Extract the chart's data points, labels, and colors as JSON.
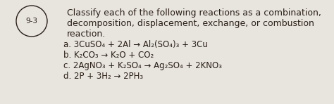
{
  "bg_color": "#e8e4de",
  "text_color": "#2a2018",
  "header1": "Classify each of the following reactions as a combination,",
  "header2": "decomposition, displacement, exchange, or combustion",
  "header3": "reaction.",
  "label": "9-3",
  "lines": [
    "a. 3CuSO₄ + 2Al → Al₂(SO₄)₃ + 3Cu",
    "b. K₂CO₃ → K₂O + CO₂",
    "c. 2AgNO₃ + K₂SO₄ → Ag₂SO₄ + 2KNO₃",
    "d. 2P + 3H₂ → 2PH₃"
  ],
  "figsize": [
    4.74,
    1.48
  ],
  "dpi": 100,
  "header_fontsize": 9.0,
  "line_fontsize": 8.5,
  "label_fontsize": 7.5
}
